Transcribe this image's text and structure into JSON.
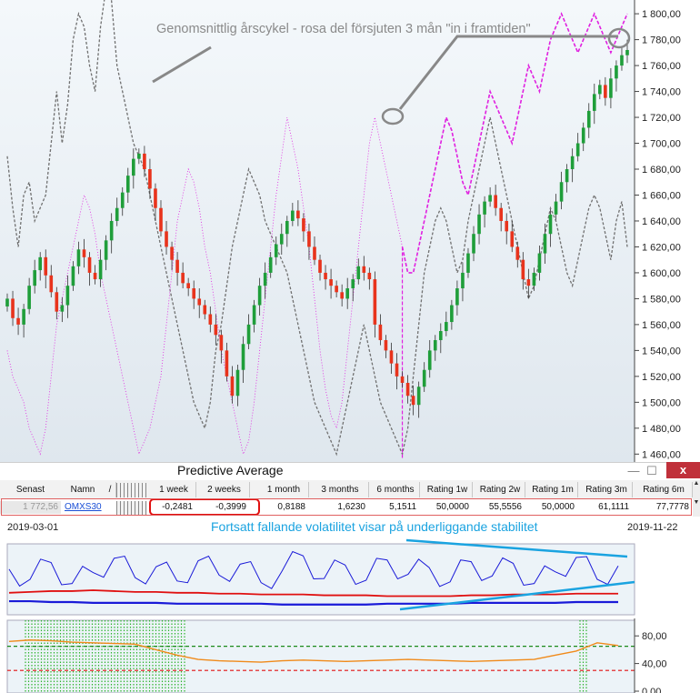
{
  "chart_data": [
    {
      "type": "candlestick",
      "yticks": [
        "1 800,00",
        "1 780,00",
        "1 760,00",
        "1 740,00",
        "1 720,00",
        "1 700,00",
        "1 680,00",
        "1 660,00",
        "1 640,00",
        "1 620,00",
        "1 600,00",
        "1 580,00",
        "1 560,00",
        "1 540,00",
        "1 520,00",
        "1 500,00",
        "1 480,00",
        "1 460,00"
      ],
      "ylim": [
        1456,
        1805
      ],
      "annotation": "Genomsnittlig årscykel - rosa del försjuten 3 mån \"in i framtiden\"",
      "close_series": [
        1580,
        1565,
        1560,
        1572,
        1590,
        1602,
        1612,
        1598,
        1585,
        1570,
        1575,
        1590,
        1605,
        1618,
        1612,
        1600,
        1595,
        1610,
        1625,
        1640,
        1650,
        1662,
        1675,
        1688,
        1692,
        1680,
        1665,
        1650,
        1632,
        1620,
        1610,
        1600,
        1592,
        1588,
        1580,
        1575,
        1568,
        1560,
        1552,
        1540,
        1520,
        1505,
        1525,
        1545,
        1560,
        1575,
        1590,
        1600,
        1612,
        1622,
        1630,
        1640,
        1648,
        1642,
        1632,
        1620,
        1610,
        1600,
        1595,
        1590,
        1585,
        1580,
        1588,
        1595,
        1605,
        1600,
        1595,
        1560,
        1548,
        1540,
        1530,
        1520,
        1515,
        1505,
        1498,
        1512,
        1525,
        1540,
        1548,
        1555,
        1562,
        1575,
        1588,
        1600,
        1615,
        1630,
        1645,
        1655,
        1660,
        1650,
        1640,
        1632,
        1620,
        1610,
        1595,
        1590,
        1600,
        1615,
        1630,
        1645,
        1655,
        1670,
        1680,
        1690,
        1700,
        1712,
        1725,
        1738,
        1745,
        1735,
        1750,
        1760,
        1768,
        1772
      ],
      "cycle_gray_series": [
        1690,
        1650,
        1620,
        1660,
        1670,
        1640,
        1650,
        1660,
        1700,
        1740,
        1700,
        1730,
        1780,
        1800,
        1790,
        1760,
        1740,
        1790,
        1820,
        1810,
        1760,
        1740,
        1720,
        1700,
        1690,
        1680,
        1660,
        1640,
        1620,
        1600,
        1580,
        1560,
        1540,
        1520,
        1500,
        1490,
        1480,
        1500,
        1540,
        1560,
        1590,
        1620,
        1640,
        1660,
        1680,
        1670,
        1660,
        1640,
        1630,
        1620,
        1610,
        1600,
        1580,
        1560,
        1540,
        1520,
        1500,
        1490,
        1480,
        1470,
        1460,
        1480,
        1500,
        1520,
        1540,
        1560,
        1540,
        1520,
        1500,
        1490,
        1480,
        1470,
        1460,
        1480,
        1520,
        1560,
        1600,
        1620,
        1640,
        1650,
        1640,
        1620,
        1600,
        1610,
        1640,
        1660,
        1680,
        1700,
        1720,
        1700,
        1680,
        1660,
        1640,
        1620,
        1600,
        1580,
        1590,
        1610,
        1630,
        1650,
        1640,
        1620,
        1600,
        1590,
        1610,
        1630,
        1650,
        1660,
        1650,
        1630,
        1610,
        1640,
        1655,
        1620
      ],
      "cycle_pink_series": [
        1540,
        1520,
        1510,
        1500,
        1480,
        1470,
        1460,
        1480,
        1520,
        1560,
        1580,
        1600,
        1620,
        1640,
        1660,
        1650,
        1630,
        1600,
        1580,
        1560,
        1540,
        1520,
        1500,
        1480,
        1460,
        1470,
        1480,
        1500,
        1520,
        1560,
        1600,
        1640,
        1660,
        1680,
        1670,
        1650,
        1620,
        1600,
        1570,
        1540,
        1520,
        1500,
        1480,
        1460,
        1470,
        1500,
        1540,
        1580,
        1620,
        1660,
        1690,
        1720,
        1700,
        1680,
        1650,
        1620,
        1580,
        1540,
        1510,
        1490,
        1480,
        1500,
        1540,
        1580,
        1620,
        1660,
        1700,
        1720,
        1700,
        1680,
        1660,
        1640,
        1620,
        1600,
        1600,
        1620,
        1640,
        1660,
        1680,
        1700,
        1720,
        1710,
        1690,
        1670,
        1660,
        1680,
        1700,
        1720,
        1740,
        1730,
        1720,
        1710,
        1700,
        1720,
        1740,
        1760,
        1750,
        1740,
        1760,
        1780,
        1790,
        1800,
        1790,
        1780,
        1770,
        1780,
        1790,
        1800,
        1790,
        1780,
        1770,
        1780,
        1790,
        1800
      ]
    },
    {
      "type": "line",
      "name": "volatility",
      "series": [
        {
          "values": [
            52,
            40,
            60,
            35,
            48,
            65,
            42,
            55,
            38,
            62,
            45,
            58,
            36,
            50,
            68,
            41,
            57,
            39,
            63,
            46,
            54,
            37,
            61,
            44,
            59,
            35,
            49,
            66,
            40,
            56
          ]
        },
        {
          "values": [
            24,
            25,
            26,
            26,
            27,
            26,
            25,
            25,
            24,
            24,
            23,
            23,
            22,
            22,
            22,
            21,
            21,
            21,
            20,
            20,
            20,
            20,
            21,
            21,
            22,
            22,
            22,
            23,
            23,
            23
          ]
        },
        {
          "values": [
            14,
            14,
            13,
            13,
            12,
            12,
            12,
            12,
            11,
            11,
            11,
            11,
            11,
            10,
            10,
            10,
            10,
            10,
            11,
            11,
            11,
            11,
            12,
            12,
            12,
            12,
            12,
            13,
            13,
            13
          ]
        }
      ]
    },
    {
      "type": "line",
      "name": "rsi",
      "yticks": [
        "80,00",
        "40,00",
        "0,00"
      ],
      "ylim": [
        0,
        100
      ],
      "series": [
        {
          "values": [
            72,
            74,
            73,
            71,
            70,
            69,
            68,
            60,
            52,
            46,
            44,
            43,
            42,
            44,
            45,
            44,
            43,
            44,
            45,
            46,
            45,
            44,
            43,
            44,
            45,
            46,
            52,
            58,
            70,
            66
          ]
        }
      ]
    }
  ],
  "window": {
    "title": "Predictive Average",
    "minimize_icon": "—",
    "maximize_icon": "☐",
    "close_icon": "x"
  },
  "table": {
    "headers": [
      "Senast",
      "Namn",
      "/",
      "1 week",
      "2 weeks",
      "1 month",
      "3 months",
      "6 months",
      "Rating 1w",
      "Rating 2w",
      "Rating 1m",
      "Rating 3m",
      "Rating 6m"
    ],
    "row": [
      "1 772,56",
      "OMXS30",
      "",
      "-0,2481",
      "-0,3999",
      "0,8188",
      "1,6230",
      "5,1511",
      "50,0000",
      "55,5556",
      "50,0000",
      "61,1111",
      "77,7778"
    ],
    "scroll_up": "▲",
    "scroll_down": "▼"
  },
  "lower": {
    "date_start": "2019-03-01",
    "date_end": "2019-11-22",
    "annotation": "Fortsatt fallande volatilitet visar på underliggande stabilitet"
  },
  "colors": {
    "up": "#1f9e3a",
    "down": "#e8331c",
    "pink": "#e020e0",
    "gray": "#707070",
    "blue": "#1a1ad8",
    "red": "#e01010",
    "orange": "#f08a1a",
    "cyan": "#1aa3e0",
    "green_dots": "#2bb32b"
  }
}
